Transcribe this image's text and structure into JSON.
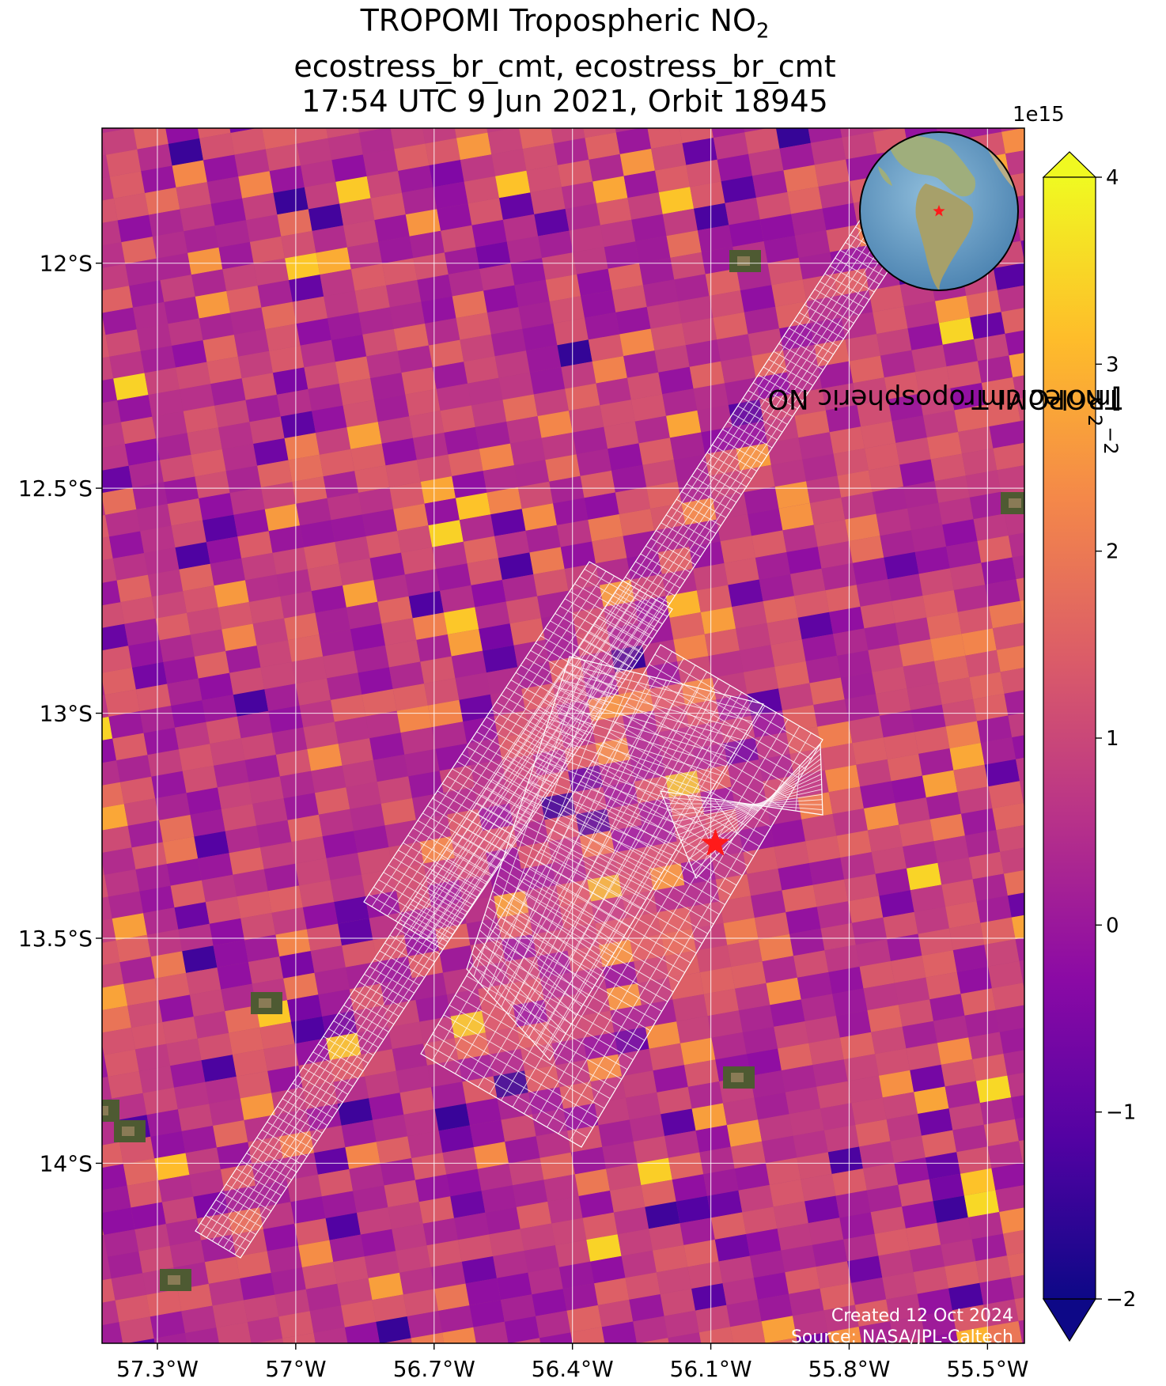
{
  "title": {
    "line1_main": "TROPOMI Tropospheric NO",
    "line1_sub": "2",
    "line2": "ecostress_br_cmt, ecostress_br_cmt",
    "line3": "17:54 UTC 9 Jun 2021, Orbit 18945"
  },
  "map": {
    "lon_ticks": [
      "57.3°W",
      "57°W",
      "56.7°W",
      "56.4°W",
      "56.1°W",
      "55.8°W",
      "55.5°W"
    ],
    "lat_ticks": [
      "12°S",
      "12.5°S",
      "13°S",
      "13.5°S",
      "14°S"
    ],
    "lon_range": [
      -57.42,
      -55.42
    ],
    "lat_range": [
      -14.4,
      -11.7
    ],
    "target_marker": {
      "lon": -56.09,
      "lat": -13.29,
      "color": "#ff1a1a"
    },
    "grid": true
  },
  "colorbar": {
    "label_main": "TROPOMI Tropospheric NO",
    "label_sub": "2",
    "label_unit": " [molec cm",
    "label_sup": "−2",
    "label_close": "]",
    "exponent": "1e15",
    "ticks": [
      "4",
      "3",
      "2",
      "1",
      "0",
      "−1",
      "−2"
    ],
    "range": [
      -2,
      4
    ],
    "colormap": "plasma"
  },
  "credits": {
    "created": "Created 12 Oct 2024",
    "source": "Source: NASA/JPL-Caltech"
  },
  "inset_globe": {
    "icon": "globe-locator-icon",
    "marker_color": "#ff1a1a"
  }
}
